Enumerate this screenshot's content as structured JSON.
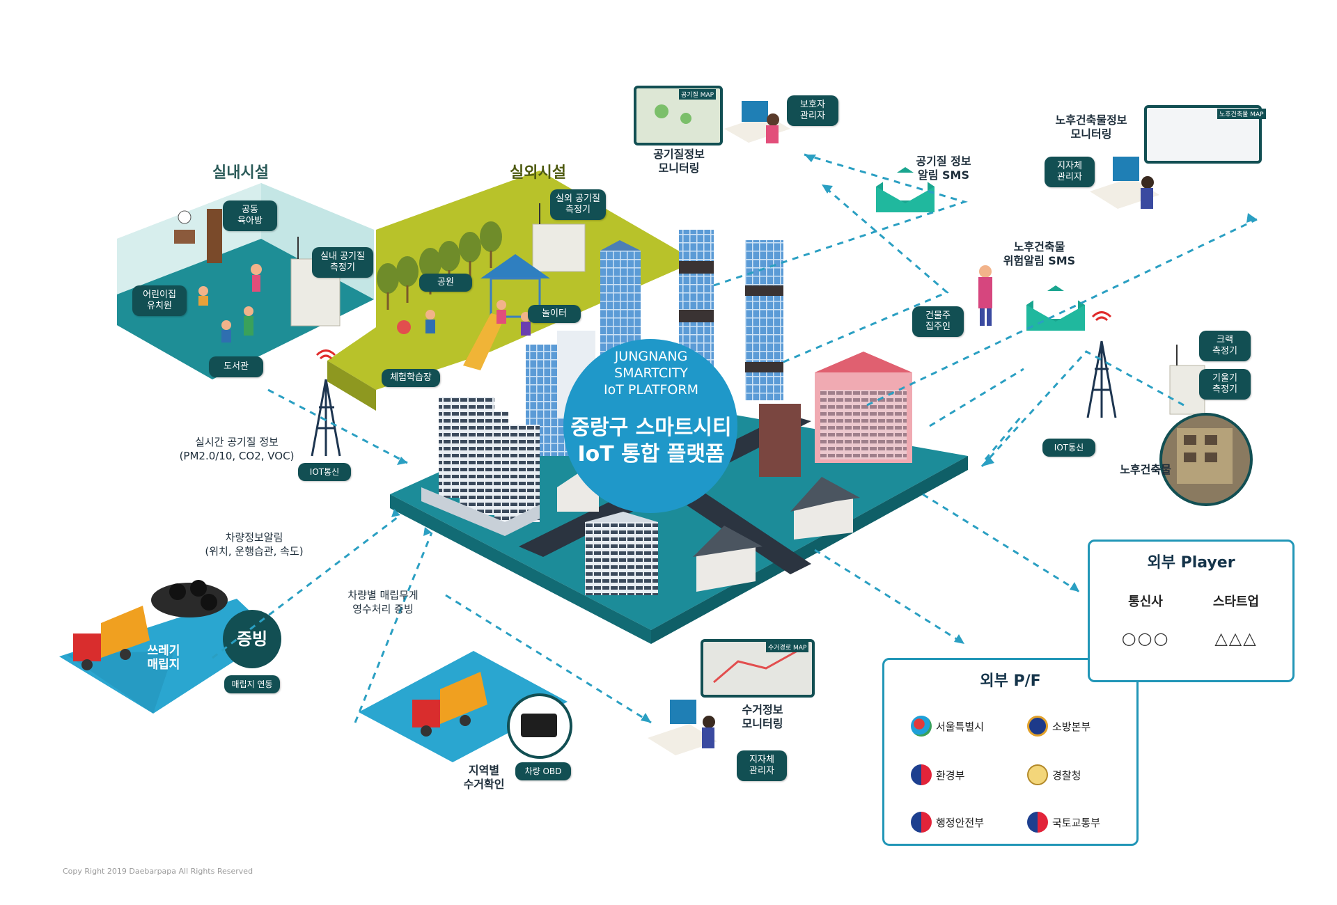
{
  "colors": {
    "teal": "#124f53",
    "blue": "#1f98c9",
    "lime": "#b7c42a",
    "platform": "#1c8c99",
    "dash": "#2a9fc2",
    "panel_border": "#2196b7"
  },
  "center": {
    "en_lines": [
      "JUNGNANG",
      "SMARTCITY",
      "IoT PLATFORM"
    ],
    "ko_line1": "중랑구 스마트시티",
    "ko_line2": "IoT 통합 플랫폼"
  },
  "sections": {
    "indoor": "실내시설",
    "outdoor": "실외시설"
  },
  "indoor_tags": {
    "daycare": "공동\n육아방",
    "kinder": "어린이집\n유치원",
    "library": "도서관",
    "sensor": "실내 공기질\n측정기"
  },
  "outdoor_tags": {
    "sensor": "실외 공기질\n측정기",
    "park": "공원",
    "playground": "놀이터",
    "experience": "체험학습장"
  },
  "realtime": {
    "label": "실시간 공기질 정보\n(PM2.0/10, CO2, VOC)",
    "iot": "IOT통신"
  },
  "air_monitor": {
    "map": "공기질 MAP",
    "label": "공기질정보\n모니터링",
    "tag": "보호자\n관리자"
  },
  "air_sms": {
    "label": "공기질 정보\n알림 SMS"
  },
  "old_building": {
    "map": "노후건축물 MAP",
    "monitor_label": "노후건축물정보\n모니터링",
    "admin_tag": "지자체\n관리자",
    "sms_label": "노후건축물\n위험알림 SMS",
    "owner_tag": "건물주\n집주인",
    "crack_tag": "크랙\n측정기",
    "tilt_tag": "기울기\n측정기",
    "iot": "IOT통신",
    "photo_label": "노후건축물"
  },
  "vehicle": {
    "notice": "차량정보알림\n(위치, 운행습관, 속도)",
    "weight": "차량별 매립무게\n영수처리 증빙",
    "landfill": "쓰레기\n매립지",
    "proof": "증빙",
    "landfill_link": "매립지 연동",
    "obd": "차량 OBD",
    "region": "지역별\n수거확인"
  },
  "collect_monitor": {
    "map": "수거경로 MAP",
    "label": "수거정보\n모니터링",
    "tag": "지자체\n관리자"
  },
  "external_player": {
    "title": "외부 Player",
    "col1": "통신사",
    "col2": "스타트업",
    "val1": "○○○",
    "val2": "△△△"
  },
  "external_pf": {
    "title": "외부 P/F",
    "orgs": [
      {
        "name": "서울특별시",
        "icon": "seoul-logo-icon"
      },
      {
        "name": "소방본부",
        "icon": "fire-dept-logo-icon"
      },
      {
        "name": "환경부",
        "icon": "taegeuk-logo-icon"
      },
      {
        "name": "경찰청",
        "icon": "police-logo-icon"
      },
      {
        "name": "행정안전부",
        "icon": "taegeuk-logo-icon"
      },
      {
        "name": "국토교통부",
        "icon": "taegeuk-logo-icon"
      }
    ]
  },
  "copyright": "Copy Right 2019 Daebarpapa All Rights Reserved"
}
